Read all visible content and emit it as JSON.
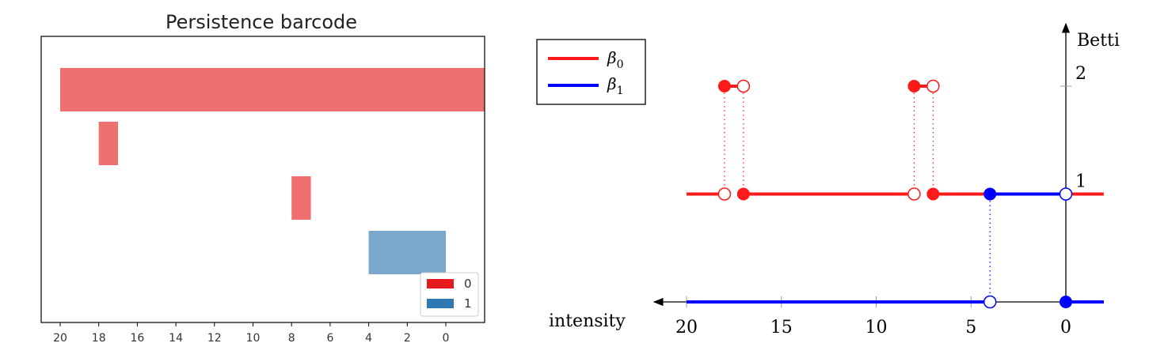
{
  "chart_data": [
    {
      "type": "bar",
      "orientation": "horizontal-barcode",
      "title": "Persistence barcode",
      "x_reversed": true,
      "xlim": [
        21,
        -2
      ],
      "xticks": [
        "20",
        "18",
        "16",
        "14",
        "12",
        "10",
        "8",
        "6",
        "4",
        "2",
        "0"
      ],
      "grid": false,
      "legend_position": "bottom-right",
      "legend": [
        {
          "label": "0",
          "color": "#e41a1c"
        },
        {
          "label": "1",
          "color": "#2f78b3"
        }
      ],
      "bars": [
        {
          "dimension": 0,
          "birth": 20,
          "death": null
        },
        {
          "dimension": 0,
          "birth": 18,
          "death": 17
        },
        {
          "dimension": 0,
          "birth": 8,
          "death": 7
        },
        {
          "dimension": 1,
          "birth": 4,
          "death": 0
        }
      ],
      "bar_colors": {
        "0": "#f07070",
        "1": "#7aa8cc"
      }
    },
    {
      "type": "line",
      "subtype": "step-function",
      "xlabel": "intensity",
      "ylabel": "Betti",
      "x_reversed": true,
      "xticks": [
        "20",
        "15",
        "10",
        "5",
        "0"
      ],
      "yticks": [
        "1",
        "2"
      ],
      "legend_position": "top-left",
      "legend": [
        {
          "label": "β",
          "subscript": "0",
          "color": "#ff1a1a"
        },
        {
          "label": "β",
          "subscript": "1",
          "color": "#0000ff"
        }
      ],
      "series": [
        {
          "name": "β0",
          "color": "#ff1a1a",
          "segments": [
            {
              "x_from": 20,
              "x_to": 18,
              "y": 1
            },
            {
              "x_from": 18,
              "x_to": 17,
              "y": 2
            },
            {
              "x_from": 17,
              "x_to": 8,
              "y": 1
            },
            {
              "x_from": 8,
              "x_to": 7,
              "y": 2
            },
            {
              "x_from": 7,
              "x_to": -2,
              "y": 1
            }
          ],
          "filled_points": [
            [
              18,
              2
            ],
            [
              17,
              1
            ],
            [
              8,
              2
            ],
            [
              7,
              1
            ]
          ],
          "open_points": [
            [
              17,
              2
            ],
            [
              18,
              1
            ],
            [
              7,
              2
            ],
            [
              8,
              1
            ]
          ]
        },
        {
          "name": "β1",
          "color": "#0000ff",
          "segments": [
            {
              "x_from": 20,
              "x_to": 4,
              "y": 0
            },
            {
              "x_from": 4,
              "x_to": 0,
              "y": 1
            },
            {
              "x_from": 0,
              "x_to": -2,
              "y": 0
            }
          ],
          "filled_points": [
            [
              4,
              1
            ],
            [
              0,
              0
            ]
          ],
          "open_points": [
            [
              4,
              0
            ],
            [
              0,
              1
            ]
          ]
        }
      ]
    }
  ]
}
